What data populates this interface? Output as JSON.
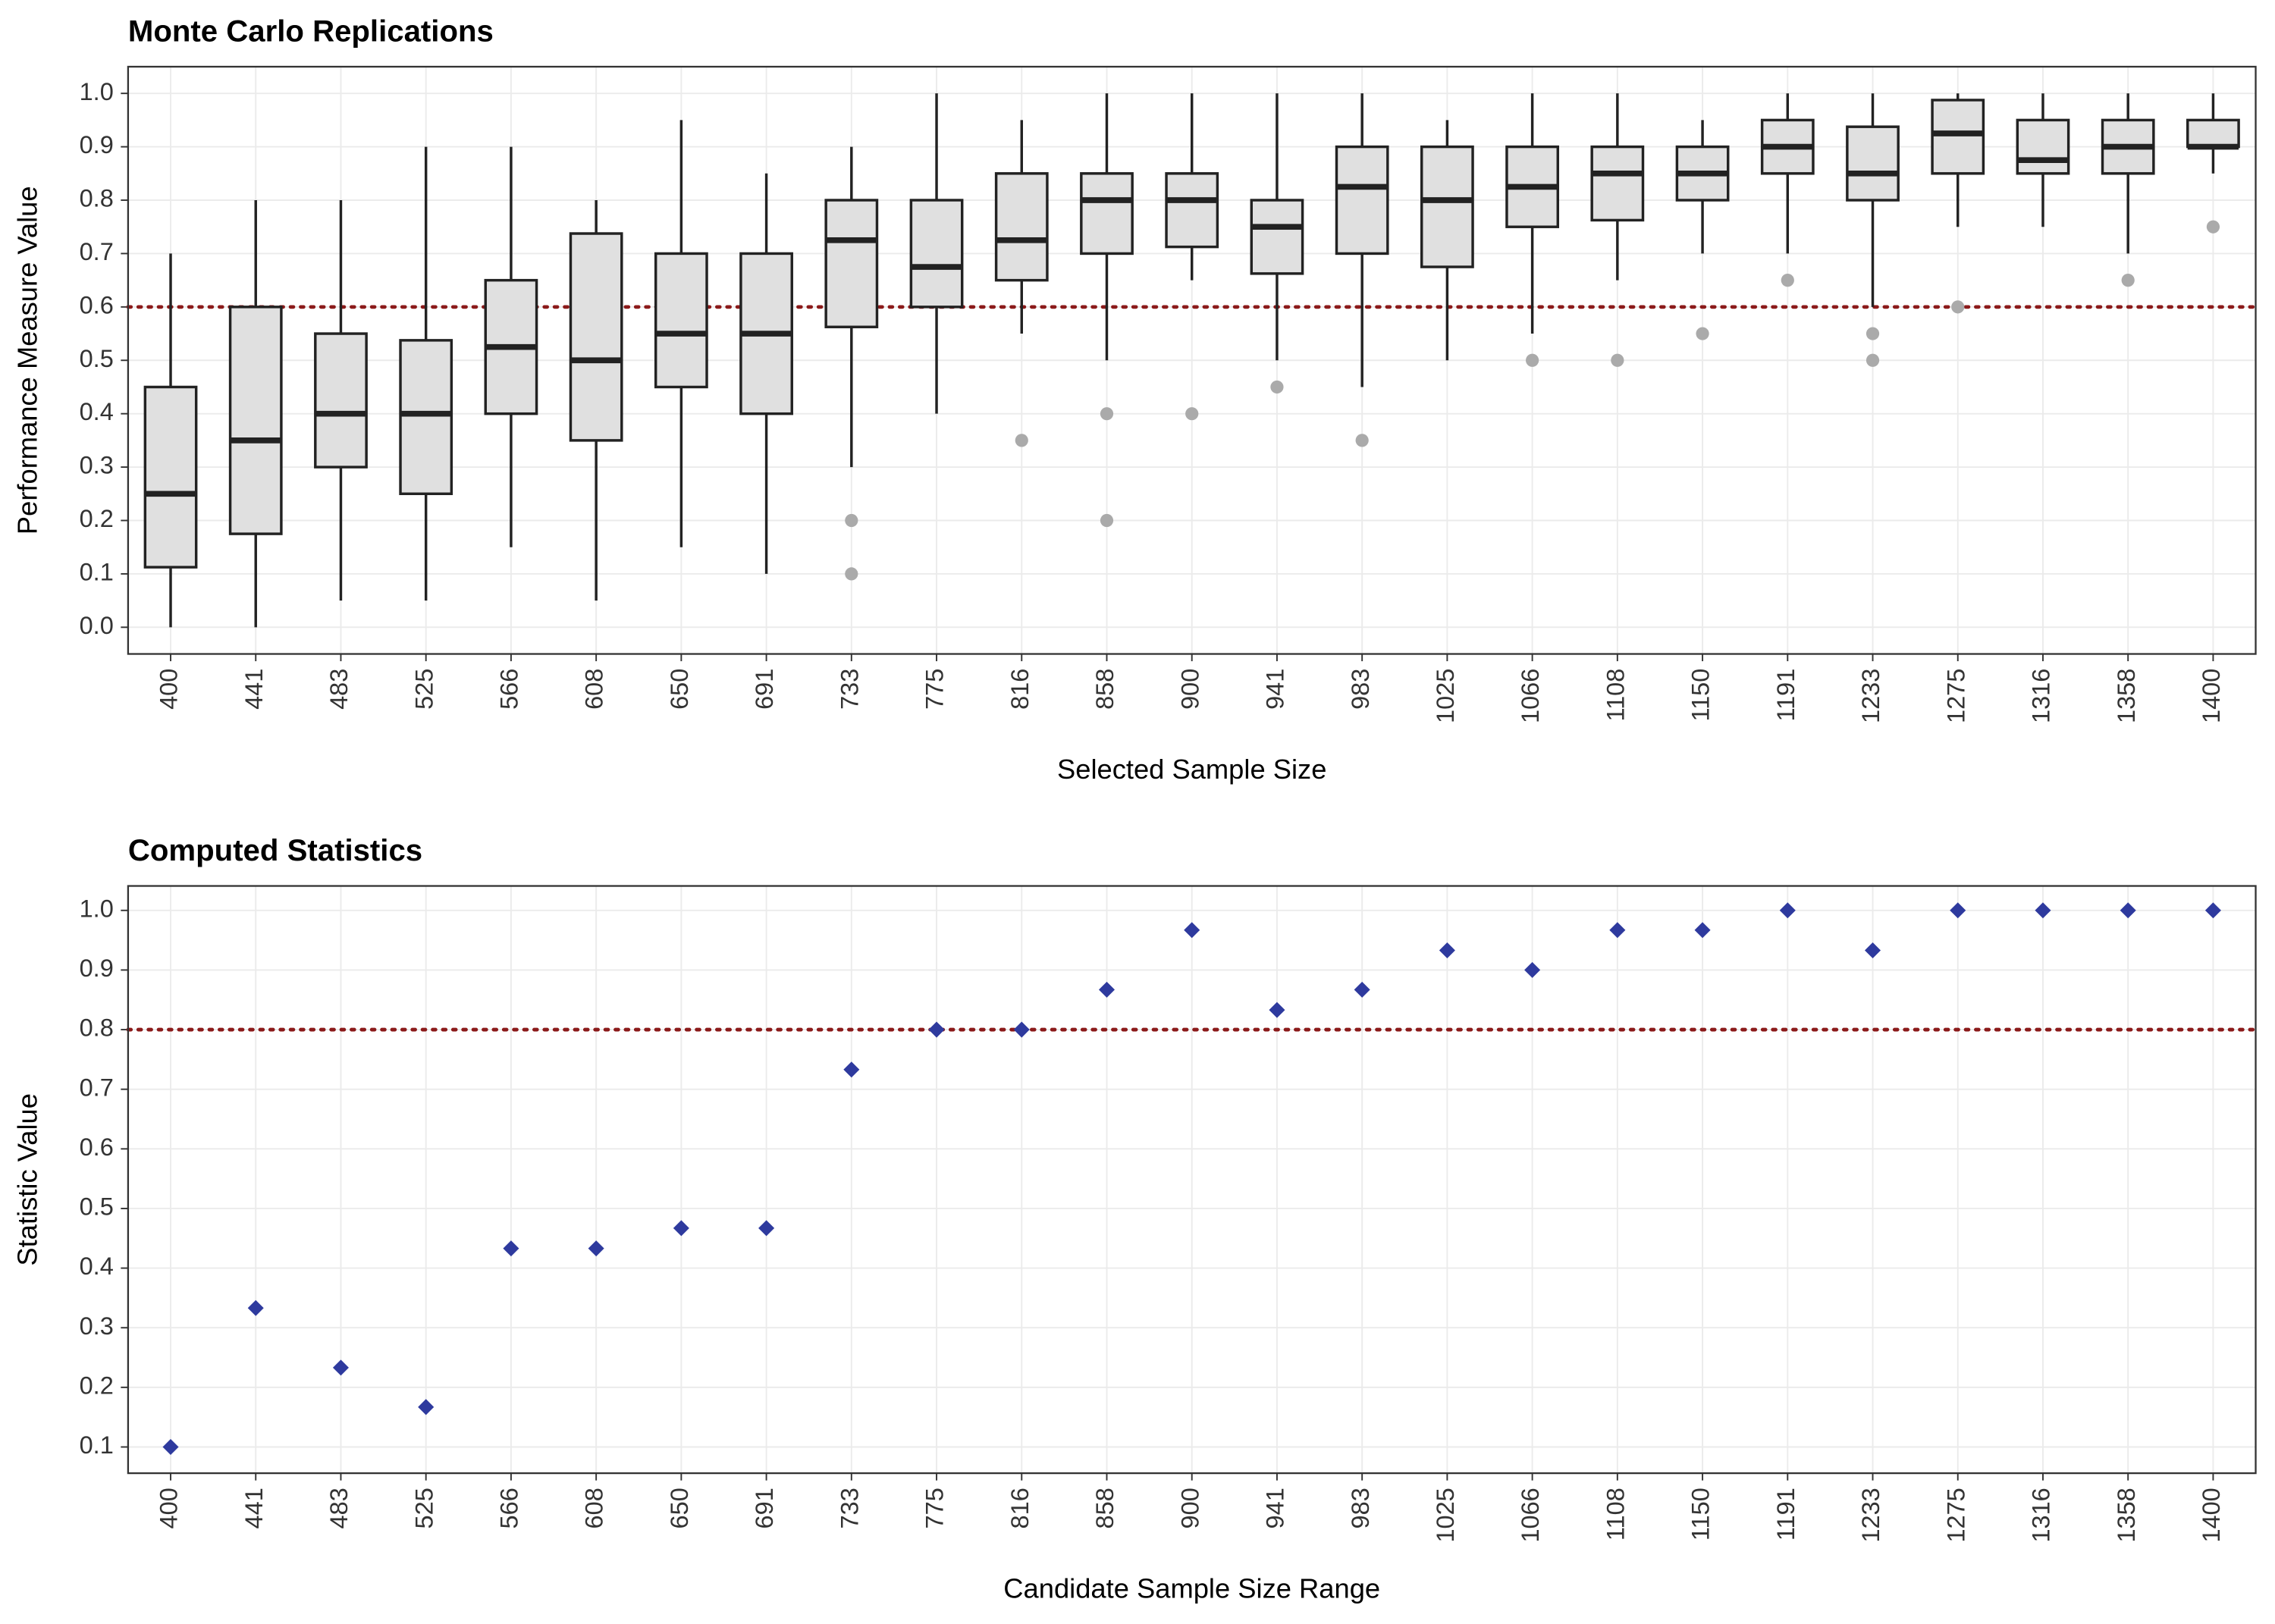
{
  "chart_data": [
    {
      "type": "box",
      "title": "Monte Carlo Replications",
      "x_label": "Selected Sample Size",
      "y_label": "Performance Measure Value",
      "categories": [
        "400",
        "441",
        "483",
        "525",
        "566",
        "608",
        "650",
        "691",
        "733",
        "775",
        "816",
        "858",
        "900",
        "941",
        "983",
        "1025",
        "1066",
        "1108",
        "1150",
        "1191",
        "1233",
        "1275",
        "1316",
        "1358",
        "1400"
      ],
      "boxes": [
        {
          "whisker_low": 0.0,
          "q1": 0.1125,
          "median": 0.25,
          "q3": 0.45,
          "whisker_high": 0.7,
          "outliers": []
        },
        {
          "whisker_low": 0.0,
          "q1": 0.175,
          "median": 0.35,
          "q3": 0.6,
          "whisker_high": 0.8,
          "outliers": []
        },
        {
          "whisker_low": 0.05,
          "q1": 0.3,
          "median": 0.4,
          "q3": 0.55,
          "whisker_high": 0.8,
          "outliers": []
        },
        {
          "whisker_low": 0.05,
          "q1": 0.25,
          "median": 0.4,
          "q3": 0.5375,
          "whisker_high": 0.9,
          "outliers": []
        },
        {
          "whisker_low": 0.15,
          "q1": 0.4,
          "median": 0.525,
          "q3": 0.65,
          "whisker_high": 0.9,
          "outliers": []
        },
        {
          "whisker_low": 0.05,
          "q1": 0.35,
          "median": 0.5,
          "q3": 0.7375,
          "whisker_high": 0.8,
          "outliers": []
        },
        {
          "whisker_low": 0.15,
          "q1": 0.45,
          "median": 0.55,
          "q3": 0.7,
          "whisker_high": 0.95,
          "outliers": []
        },
        {
          "whisker_low": 0.1,
          "q1": 0.4,
          "median": 0.55,
          "q3": 0.7,
          "whisker_high": 0.85,
          "outliers": []
        },
        {
          "whisker_low": 0.3,
          "q1": 0.5625,
          "median": 0.725,
          "q3": 0.8,
          "whisker_high": 0.9,
          "outliers": [
            0.2,
            0.1
          ]
        },
        {
          "whisker_low": 0.4,
          "q1": 0.6,
          "median": 0.675,
          "q3": 0.8,
          "whisker_high": 1.0,
          "outliers": []
        },
        {
          "whisker_low": 0.55,
          "q1": 0.65,
          "median": 0.725,
          "q3": 0.85,
          "whisker_high": 0.95,
          "outliers": [
            0.35
          ]
        },
        {
          "whisker_low": 0.5,
          "q1": 0.7,
          "median": 0.8,
          "q3": 0.85,
          "whisker_high": 1.0,
          "outliers": [
            0.4,
            0.2
          ]
        },
        {
          "whisker_low": 0.65,
          "q1": 0.7125,
          "median": 0.8,
          "q3": 0.85,
          "whisker_high": 1.0,
          "outliers": [
            0.4
          ]
        },
        {
          "whisker_low": 0.5,
          "q1": 0.6625,
          "median": 0.75,
          "q3": 0.8,
          "whisker_high": 1.0,
          "outliers": [
            0.45
          ]
        },
        {
          "whisker_low": 0.45,
          "q1": 0.7,
          "median": 0.825,
          "q3": 0.9,
          "whisker_high": 1.0,
          "outliers": [
            0.35
          ]
        },
        {
          "whisker_low": 0.5,
          "q1": 0.675,
          "median": 0.8,
          "q3": 0.9,
          "whisker_high": 0.95,
          "outliers": []
        },
        {
          "whisker_low": 0.55,
          "q1": 0.75,
          "median": 0.825,
          "q3": 0.9,
          "whisker_high": 1.0,
          "outliers": [
            0.5
          ]
        },
        {
          "whisker_low": 0.65,
          "q1": 0.7625,
          "median": 0.85,
          "q3": 0.9,
          "whisker_high": 1.0,
          "outliers": [
            0.5
          ]
        },
        {
          "whisker_low": 0.7,
          "q1": 0.8,
          "median": 0.85,
          "q3": 0.9,
          "whisker_high": 0.95,
          "outliers": [
            0.55
          ]
        },
        {
          "whisker_low": 0.7,
          "q1": 0.85,
          "median": 0.9,
          "q3": 0.95,
          "whisker_high": 1.0,
          "outliers": [
            0.65
          ]
        },
        {
          "whisker_low": 0.6,
          "q1": 0.8,
          "median": 0.85,
          "q3": 0.9375,
          "whisker_high": 1.0,
          "outliers": [
            0.55,
            0.5
          ]
        },
        {
          "whisker_low": 0.75,
          "q1": 0.85,
          "median": 0.925,
          "q3": 0.9875,
          "whisker_high": 1.0,
          "outliers": [
            0.6
          ]
        },
        {
          "whisker_low": 0.75,
          "q1": 0.85,
          "median": 0.875,
          "q3": 0.95,
          "whisker_high": 1.0,
          "outliers": []
        },
        {
          "whisker_low": 0.7,
          "q1": 0.85,
          "median": 0.9,
          "q3": 0.95,
          "whisker_high": 1.0,
          "outliers": [
            0.65
          ]
        },
        {
          "whisker_low": 0.85,
          "q1": 0.9,
          "median": 0.9,
          "q3": 0.95,
          "whisker_high": 1.0,
          "outliers": [
            0.75
          ]
        }
      ],
      "box_color": "#e0e0e0",
      "outlier_color": "#aaaaaa",
      "hline": 0.6,
      "hline_color": "#8b1a1a",
      "ylim": [
        -0.05,
        1.05
      ],
      "yticks": [
        {
          "value": 0,
          "label": "0.0"
        },
        0.1,
        0.2,
        0.3,
        0.4,
        0.5,
        0.6,
        0.7,
        0.8,
        0.9,
        {
          "value": 1,
          "label": "1.0"
        }
      ],
      "grid": true
    },
    {
      "type": "scatter",
      "title": "Computed Statistics",
      "x_label": "Candidate Sample Size Range",
      "y_label": "Statistic Value",
      "categories": [
        "400",
        "441",
        "483",
        "525",
        "566",
        "608",
        "650",
        "691",
        "733",
        "775",
        "816",
        "858",
        "900",
        "941",
        "983",
        "1025",
        "1066",
        "1108",
        "1150",
        "1191",
        "1233",
        "1275",
        "1316",
        "1358",
        "1400"
      ],
      "values": [
        0.1,
        0.333,
        0.233,
        0.167,
        0.433,
        0.433,
        0.467,
        0.467,
        0.733,
        0.8,
        0.8,
        0.867,
        0.967,
        0.833,
        0.867,
        0.933,
        0.9,
        0.967,
        0.967,
        1.0,
        0.933,
        1.0,
        1.0,
        1.0,
        1.0
      ],
      "color": "#2e3a9e",
      "hline": 0.8,
      "hline_color": "#8b1a1a",
      "ylim": [
        0.056,
        1.041
      ],
      "yticks": [
        0.1,
        0.2,
        0.3,
        0.4,
        0.5,
        0.6,
        0.7,
        0.8,
        0.9,
        {
          "value": 1,
          "label": "1.0"
        }
      ],
      "grid": true
    }
  ]
}
